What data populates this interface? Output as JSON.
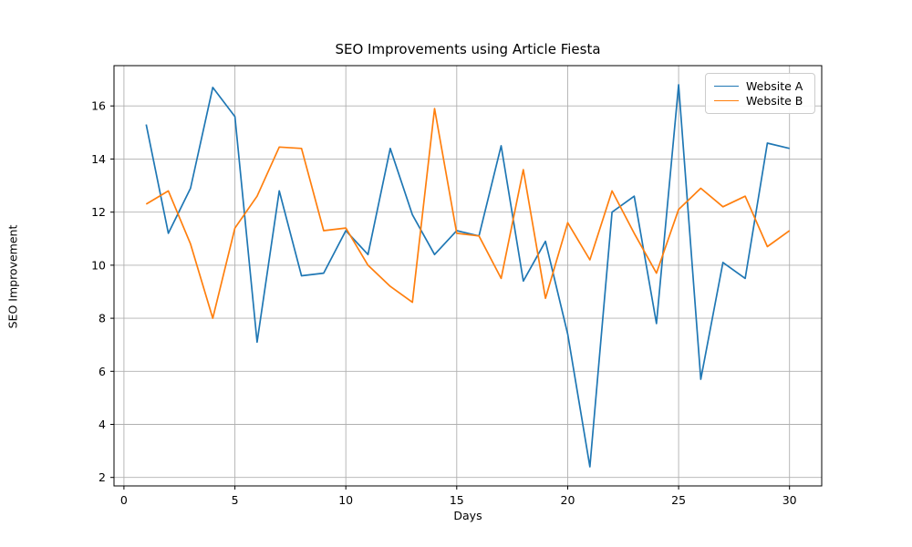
{
  "chart_data": {
    "type": "line",
    "title": "SEO Improvements using Article Fiesta",
    "xlabel": "Days",
    "ylabel": "SEO Improvement",
    "x": [
      1,
      2,
      3,
      4,
      5,
      6,
      7,
      8,
      9,
      10,
      11,
      12,
      13,
      14,
      15,
      16,
      17,
      18,
      19,
      20,
      21,
      22,
      23,
      24,
      25,
      26,
      27,
      28,
      29,
      30
    ],
    "series": [
      {
        "name": "Website A",
        "color": "#1f77b4",
        "values": [
          15.3,
          11.2,
          12.9,
          16.7,
          15.6,
          7.1,
          12.8,
          9.6,
          9.7,
          11.3,
          10.4,
          14.4,
          11.9,
          10.4,
          11.3,
          11.1,
          14.5,
          9.4,
          10.9,
          7.4,
          2.4,
          12.0,
          12.6,
          7.8,
          16.8,
          5.7,
          10.1,
          9.5,
          14.6,
          14.4
        ]
      },
      {
        "name": "Website B",
        "color": "#ff7f0e",
        "values": [
          12.3,
          12.8,
          10.8,
          8.0,
          11.4,
          12.6,
          14.45,
          14.4,
          11.3,
          11.4,
          10.0,
          9.2,
          8.6,
          15.9,
          11.2,
          11.1,
          9.5,
          13.6,
          8.75,
          11.6,
          10.2,
          12.8,
          11.2,
          9.7,
          12.1,
          12.9,
          12.2,
          12.6,
          10.7,
          11.3
        ]
      }
    ],
    "xlim": [
      -0.45,
      31.45
    ],
    "ylim": [
      1.68,
      17.52
    ],
    "xticks": [
      0,
      5,
      10,
      15,
      20,
      25,
      30
    ],
    "yticks": [
      2,
      4,
      6,
      8,
      10,
      12,
      14,
      16
    ],
    "grid": true,
    "grid_color": "#b0b0b0",
    "spine_color": "#000000",
    "legend_position": "upper right"
  }
}
